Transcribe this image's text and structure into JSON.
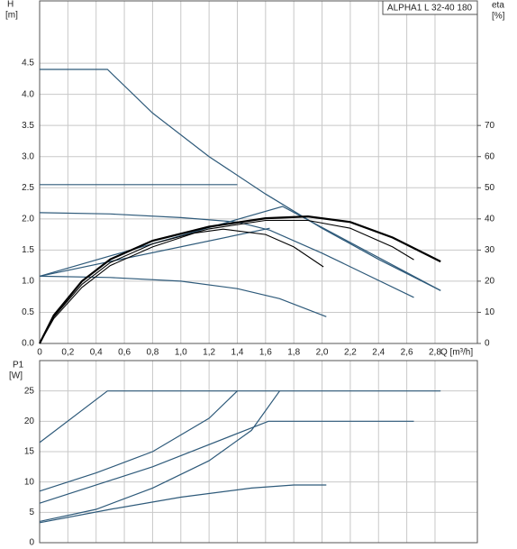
{
  "chart_data": [
    {
      "type": "line",
      "title": "ALPHA1 L 32-40 180",
      "ylabel": "H",
      "yunit": "[m]",
      "y2label": "eta",
      "y2unit": "[%]",
      "xlabel": "Q [m³/h]",
      "xlim": [
        0,
        3.1
      ],
      "ylim": [
        0,
        5.5
      ],
      "y2lim": [
        0,
        110
      ],
      "grid": true,
      "xticks": [
        0,
        {
          "value": 0.2,
          "label": "0,2"
        },
        {
          "value": 0.4,
          "label": "0,4"
        },
        {
          "value": 0.6,
          "label": "0,6"
        },
        {
          "value": 0.8,
          "label": "0,8"
        },
        {
          "value": 1,
          "label": "1,0"
        },
        {
          "value": 1.2,
          "label": "1,2"
        },
        {
          "value": 1.4,
          "label": "1,4"
        },
        {
          "value": 1.6,
          "label": "1,6"
        },
        {
          "value": 1.8,
          "label": "1,8"
        },
        {
          "value": 2,
          "label": "2,0"
        },
        {
          "value": 2.2,
          "label": "2,2"
        },
        {
          "value": 2.4,
          "label": "2,4"
        },
        {
          "value": 2.6,
          "label": "2,6"
        },
        {
          "value": 2.8,
          "label": "2,8"
        }
      ],
      "yticks": [
        {
          "value": 0,
          "label": "0.0"
        },
        0.5,
        {
          "value": 1,
          "label": "1.0"
        },
        1.5,
        {
          "value": 2,
          "label": "2.0"
        },
        2.5,
        {
          "value": 3,
          "label": "3.0"
        },
        3.5,
        {
          "value": 4,
          "label": "4.0"
        },
        4.5
      ],
      "y2ticks": [
        0,
        10,
        20,
        30,
        40,
        50,
        60,
        70
      ],
      "series": [
        {
          "color": "#2e5a7a",
          "line_width": 1.2,
          "x": [
            0,
            0.48,
            0.8,
            1.2,
            1.6,
            2.0,
            2.4,
            2.84
          ],
          "values": [
            4.4,
            4.4,
            3.7,
            3.0,
            2.4,
            1.85,
            1.35,
            0.85
          ]
        },
        {
          "color": "#2e5a7a",
          "line_width": 1.2,
          "x": [
            0,
            1.4
          ],
          "values": [
            2.55,
            2.55
          ]
        },
        {
          "color": "#2e5a7a",
          "line_width": 1.2,
          "x": [
            0,
            1.72,
            2.84
          ],
          "values": [
            1.08,
            2.2,
            0.85
          ]
        },
        {
          "color": "#2e5a7a",
          "line_width": 1.2,
          "x": [
            0,
            0.5,
            1.0,
            1.4,
            1.63,
            2.0,
            2.65
          ],
          "values": [
            2.1,
            2.08,
            2.02,
            1.95,
            1.82,
            1.45,
            0.74
          ]
        },
        {
          "color": "#2e5a7a",
          "line_width": 1.2,
          "x": [
            0,
            1.63
          ],
          "values": [
            1.08,
            1.85
          ]
        },
        {
          "color": "#2e5a7a",
          "line_width": 1.2,
          "x": [
            0,
            0.5,
            1.0,
            1.4,
            1.7,
            2.03
          ],
          "values": [
            1.08,
            1.06,
            1.0,
            0.88,
            0.72,
            0.43
          ]
        },
        {
          "color": "#000000",
          "line_width": 2.2,
          "axis": "y2",
          "x": [
            0,
            0.1,
            0.3,
            0.5,
            0.8,
            1.2,
            1.6,
            1.9,
            2.2,
            2.5,
            2.84
          ],
          "values": [
            0,
            9,
            20,
            27,
            33,
            37.5,
            40.2,
            40.8,
            39,
            34,
            26.3
          ]
        },
        {
          "color": "#000000",
          "line_width": 1.1,
          "axis": "y2",
          "x": [
            0,
            0.1,
            0.3,
            0.5,
            0.8,
            1.2,
            1.6,
            1.9,
            2.2,
            2.5,
            2.65
          ],
          "values": [
            0,
            8.5,
            19,
            26,
            32,
            36.8,
            39.5,
            39.5,
            37,
            31,
            26.9
          ]
        },
        {
          "color": "#000000",
          "line_width": 1.1,
          "axis": "y2",
          "x": [
            0,
            0.1,
            0.3,
            0.5,
            0.8,
            1.1,
            1.3,
            1.6,
            1.8,
            2.01
          ],
          "values": [
            0,
            8,
            18,
            25,
            31,
            35.5,
            36.7,
            35,
            31,
            24.6
          ]
        }
      ]
    },
    {
      "type": "line",
      "ylabel": "P1",
      "yunit": "[W]",
      "xlim": [
        0,
        3.1
      ],
      "ylim": [
        0,
        30
      ],
      "grid": true,
      "yticks": [
        0,
        5,
        10,
        15,
        20,
        25
      ],
      "series": [
        {
          "color": "#2e5a7a",
          "line_width": 1.2,
          "x": [
            0,
            0.48,
            2.84
          ],
          "values": [
            16.5,
            25,
            25
          ]
        },
        {
          "color": "#2e5a7a",
          "line_width": 1.2,
          "x": [
            0,
            0.4,
            0.8,
            1.2,
            1.4
          ],
          "values": [
            8.5,
            11.5,
            15,
            20.5,
            25
          ]
        },
        {
          "color": "#2e5a7a",
          "line_width": 1.2,
          "x": [
            0,
            0.8,
            1.62,
            2.65
          ],
          "values": [
            6.5,
            12.5,
            20,
            20
          ]
        },
        {
          "color": "#2e5a7a",
          "line_width": 1.2,
          "x": [
            0,
            0.4,
            0.8,
            1.2,
            1.5,
            1.7
          ],
          "values": [
            3.5,
            5.5,
            9,
            13.5,
            18.5,
            25
          ]
        },
        {
          "color": "#2e5a7a",
          "line_width": 1.2,
          "x": [
            0,
            0.5,
            1.0,
            1.5,
            1.8,
            2.03
          ],
          "values": [
            3.3,
            5.5,
            7.5,
            9,
            9.5,
            9.5
          ]
        }
      ]
    }
  ]
}
